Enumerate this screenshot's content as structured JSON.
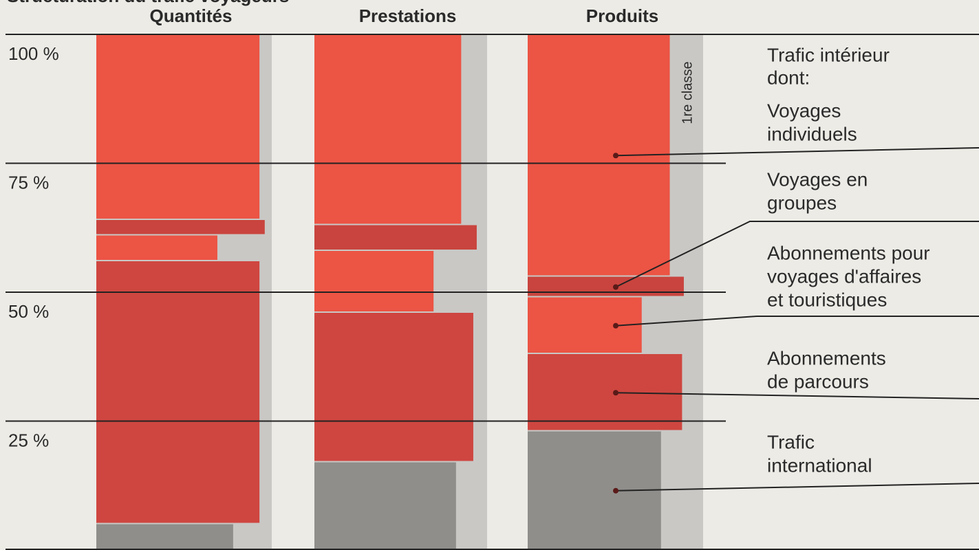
{
  "chart_data": {
    "type": "stacked_bar",
    "title": "Structuration du trafic voyageurs",
    "categories": [
      "Quantités",
      "Prestations",
      "Produits"
    ],
    "ylim": [
      0,
      100
    ],
    "yticks": [
      {
        "value": 25,
        "label": "25 %"
      },
      {
        "value": 50,
        "label": "50 %"
      },
      {
        "value": 75,
        "label": "75 %"
      },
      {
        "value": 100,
        "label": "100 %"
      }
    ],
    "grid": true,
    "first_class_label": "1re classe",
    "legend_header": [
      "Trafic intérieur",
      "dont:"
    ],
    "series": [
      {
        "name": "Trafic international",
        "label_lines": [
          "Trafic",
          "international"
        ],
        "color": "#8f8e8b",
        "values": [
          5,
          17,
          23
        ],
        "widths": [
          78,
          82,
          76
        ]
      },
      {
        "name": "Abonnements de parcours",
        "label_lines": [
          "Abonnements",
          "de parcours"
        ],
        "color": "#cf4640",
        "values": [
          51,
          29,
          15
        ],
        "widths": [
          93,
          92,
          88
        ]
      },
      {
        "name": "Abonnements pour voyages d'affaires et touristiques",
        "label_lines": [
          "Abonnements pour",
          "voyages d'affaires",
          "et touristiques"
        ],
        "color": "#ec5444",
        "values": [
          5,
          12,
          11
        ],
        "widths": [
          69,
          69,
          65
        ]
      },
      {
        "name": "Voyages en groupes",
        "label_lines": [
          "Voyages en",
          "groupes"
        ],
        "color": "#c9443e",
        "values": [
          3,
          5,
          4
        ],
        "widths": [
          96,
          94,
          89
        ]
      },
      {
        "name": "Voyages individuels",
        "label_lines": [
          "Voyages",
          "individuels"
        ],
        "color": "#ec5444",
        "values": [
          36,
          37,
          47
        ],
        "widths": [
          93,
          85,
          81
        ]
      }
    ]
  }
}
